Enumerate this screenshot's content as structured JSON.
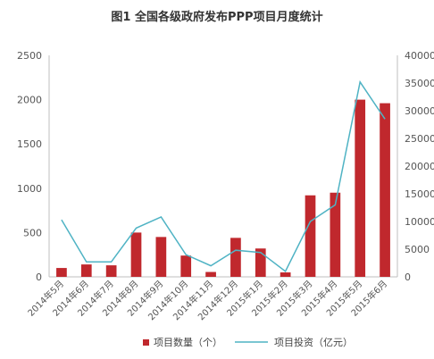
{
  "chart_data": {
    "type": "bar",
    "title": "图1 全国各级政府发布PPP项目月度统计",
    "categories": [
      "2014年5月",
      "2014年6月",
      "2014年7月",
      "2014年8月",
      "2014年9月",
      "2014年10月",
      "2014年11月",
      "2014年12月",
      "2015年1月",
      "2015年2月",
      "2015年3月",
      "2015年4月",
      "2015年5月",
      "2015年6月"
    ],
    "series": [
      {
        "name": "项目数量（个）",
        "type": "bar",
        "axis": "left",
        "color": "#c0282d",
        "values": [
          100,
          140,
          130,
          500,
          450,
          240,
          55,
          440,
          320,
          50,
          920,
          950,
          2000,
          1960
        ]
      },
      {
        "name": "项目投资（亿元）",
        "type": "line",
        "axis": "right",
        "color": "#4fb3c4",
        "values": [
          10300,
          2700,
          2700,
          8800,
          10800,
          4000,
          2000,
          4800,
          4400,
          1000,
          10000,
          13000,
          35200,
          28500
        ]
      }
    ],
    "ylim_left": [
      0,
      2500
    ],
    "yticks_left": [
      0,
      500,
      1000,
      1500,
      2000,
      2500
    ],
    "ylim_right": [
      0,
      40000
    ],
    "yticks_right": [
      0,
      5000,
      10000,
      15000,
      20000,
      25000,
      30000,
      35000,
      40000
    ],
    "grid": false,
    "legend_position": "bottom"
  }
}
